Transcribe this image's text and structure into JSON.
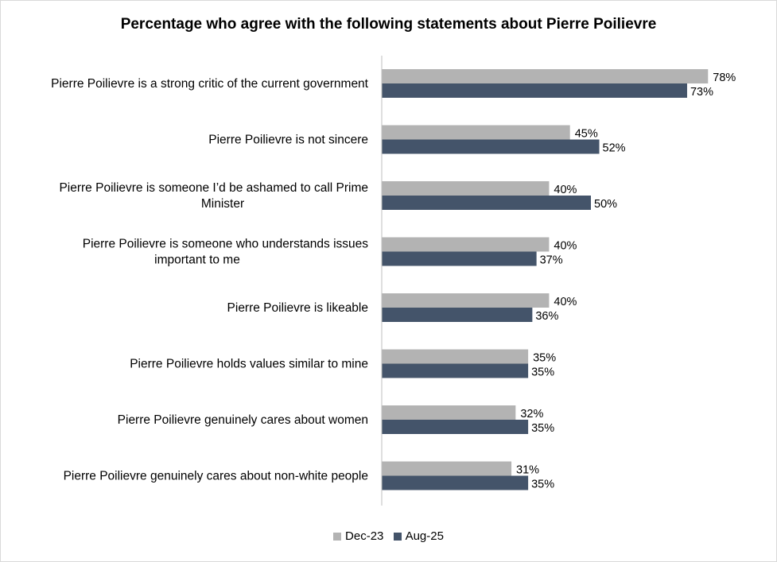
{
  "chart_data": {
    "type": "bar",
    "orientation": "horizontal",
    "title": "Percentage who agree with the following statements about Pierre Poilievre",
    "categories": [
      "Pierre Poilievre is a strong critic of the current government",
      "Pierre Poilievre is not sincere",
      "Pierre Poilievre is someone I’d be ashamed to call Prime Minister",
      "Pierre Poilievre is someone who understands issues important to me",
      "Pierre Poilievre is likeable",
      "Pierre Poilievre holds values similar to mine",
      "Pierre Poilievre genuinely cares about women",
      "Pierre Poilievre genuinely cares about non-white people"
    ],
    "category_lines": [
      [
        "Pierre Poilievre is a strong critic of the current government"
      ],
      [
        "Pierre Poilievre is not sincere"
      ],
      [
        "Pierre Poilievre is someone I’d be ashamed to call Prime",
        "Minister"
      ],
      [
        "Pierre Poilievre is someone who understands issues",
        "important to me"
      ],
      [
        "Pierre Poilievre is likeable"
      ],
      [
        "Pierre Poilievre holds values similar to mine"
      ],
      [
        "Pierre Poilievre genuinely cares about women"
      ],
      [
        "Pierre Poilievre genuinely cares about non-white people"
      ]
    ],
    "series": [
      {
        "name": "Dec-23",
        "color": "#b3b3b3",
        "values": [
          78,
          45,
          40,
          40,
          40,
          35,
          32,
          31
        ],
        "labels": [
          "78%",
          "45%",
          "40%",
          "40%",
          "40%",
          "35%",
          "32%",
          "31%"
        ]
      },
      {
        "name": "Aug-25",
        "color": "#44546a",
        "values": [
          73,
          52,
          50,
          37,
          36,
          35,
          35,
          35
        ],
        "labels": [
          "73%",
          "52%",
          "50%",
          "37%",
          "36%",
          "35%",
          "35%",
          "35%"
        ]
      }
    ],
    "xlim": [
      0,
      100
    ],
    "grid": false,
    "legend_position": "bottom"
  }
}
